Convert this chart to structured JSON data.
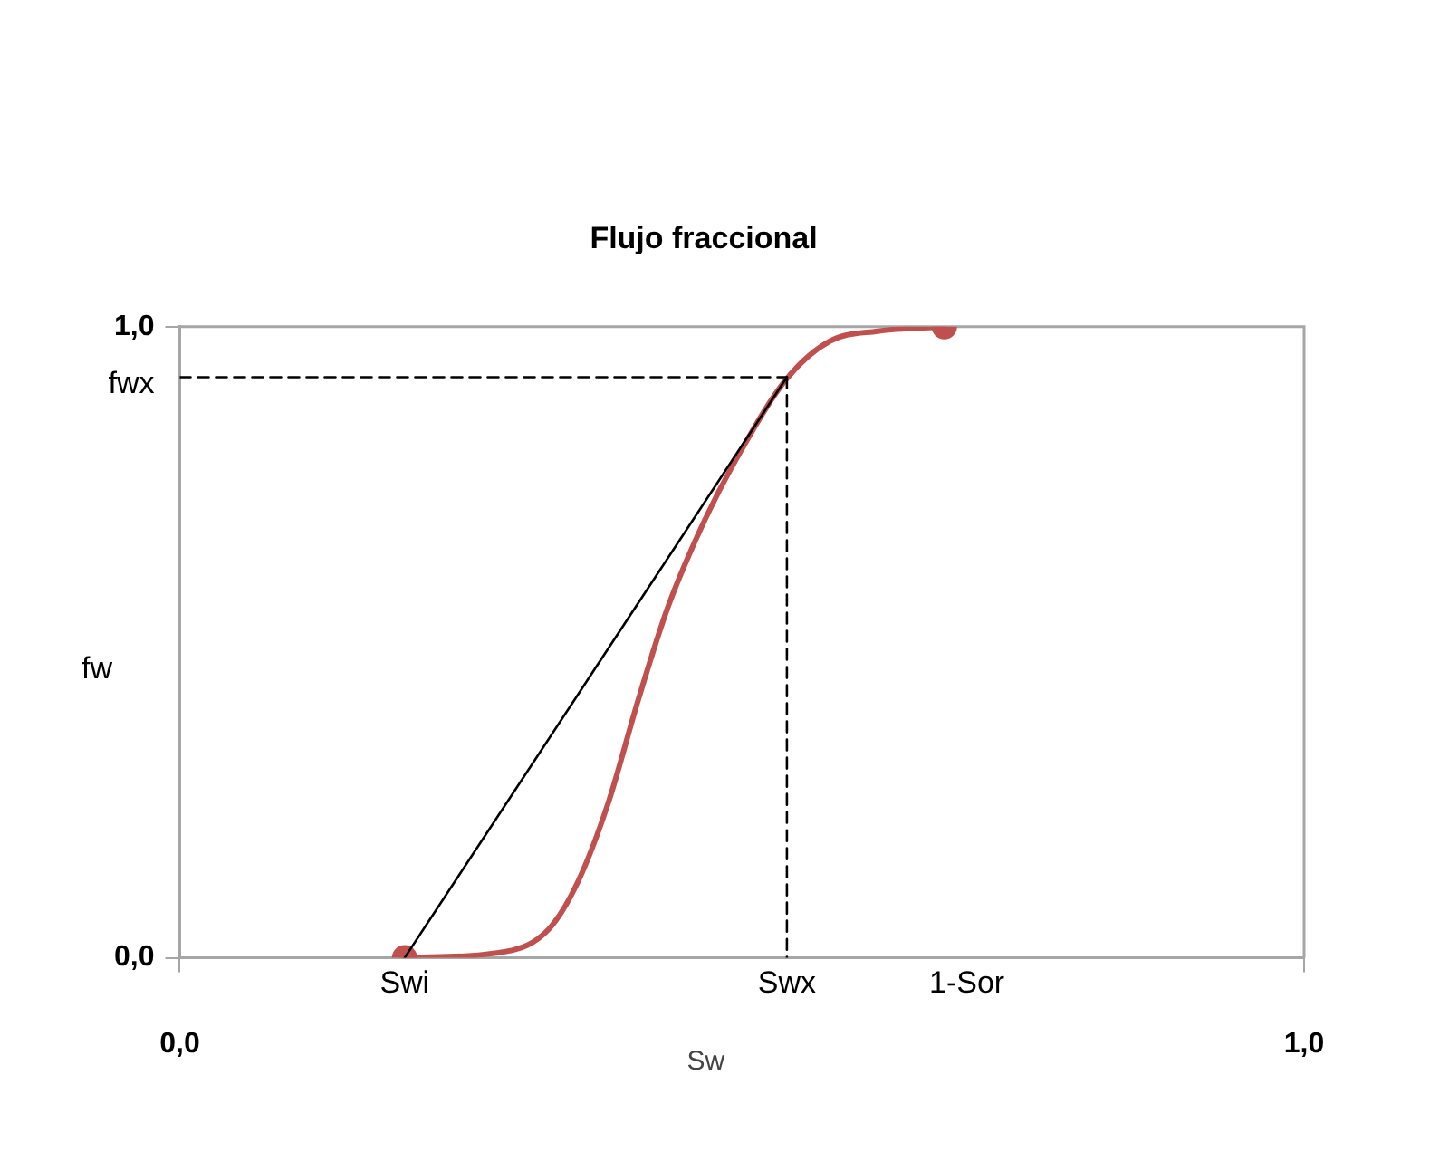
{
  "chart_data": {
    "type": "line",
    "title": "Flujo fraccional",
    "xlabel": "Sw",
    "ylabel": "fw",
    "xlim": [
      0,
      1
    ],
    "ylim": [
      0,
      1
    ],
    "xticks": [
      {
        "value": 0,
        "label": "0,0"
      },
      {
        "value": 1,
        "label": "1,0"
      }
    ],
    "yticks": [
      {
        "value": 0,
        "label": "0,0"
      },
      {
        "value": 1,
        "label": "1,0"
      }
    ],
    "legend": false,
    "line_style": "solid",
    "marker": "none",
    "series": [
      {
        "type": "line",
        "color": "#000000",
        "line_style": "dashed",
        "x": [
          0,
          0.54
        ],
        "values": [
          0.92,
          0.92
        ]
      },
      {
        "type": "line",
        "color": "#000000",
        "line_style": "dashed",
        "x": [
          0.54,
          0.54
        ],
        "values": [
          0.92,
          0
        ]
      },
      {
        "type": "line",
        "color": "#000000",
        "x": [
          0.2,
          0.54
        ],
        "values": [
          0,
          0.92
        ]
      },
      {
        "type": "line",
        "color": "#c0504d",
        "x": [
          0.2,
          0.29,
          0.328,
          0.354,
          0.381,
          0.408,
          0.434,
          0.466,
          0.498,
          0.54,
          0.578,
          0.621,
          0.68
        ],
        "values": [
          0,
          0.01,
          0.045,
          0.12,
          0.245,
          0.41,
          0.555,
          0.69,
          0.8,
          0.918,
          0.977,
          0.993,
          1
        ]
      },
      {
        "type": "scatter",
        "color": "#c0504d",
        "marker": "circle",
        "x": [
          0.2,
          0.68
        ],
        "values": [
          0,
          1
        ]
      }
    ],
    "annotations": [
      {
        "text": "Swi",
        "x": 0.2,
        "y": 0
      },
      {
        "text": "Swx",
        "x": 0.54,
        "y": 0
      },
      "1-Sor",
      {
        "text": "fwx",
        "x": 0,
        "y": 0.92
      }
    ]
  }
}
